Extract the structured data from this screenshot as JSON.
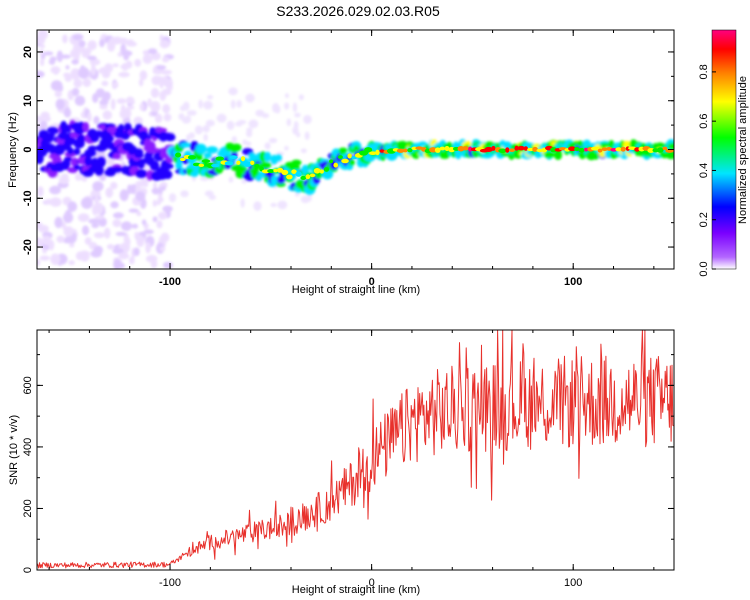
{
  "title": "S233.2026.029.02.03.R05",
  "chart_data": [
    {
      "type": "heatmap",
      "name": "spectrogram",
      "xlabel": "Height of straight line (km)",
      "ylabel": "Frequency (Hz)",
      "xlim": [
        -166,
        150
      ],
      "ylim": [
        -24.5,
        24.5
      ],
      "xticks": [
        -100,
        0,
        100
      ],
      "yticks": [
        -20,
        -10,
        0,
        10,
        20
      ],
      "colorbar": {
        "label": "Normalized spectral amplitude",
        "range": [
          0,
          0.97
        ],
        "ticks": [
          0.0,
          0.2,
          0.4,
          0.6,
          0.8
        ],
        "tick_labels": [
          "0.0",
          "0.2",
          "0.4",
          "0.6",
          "0.8"
        ],
        "colors": [
          "#ffffff",
          "#8800ff",
          "#0000ff",
          "#00ffff",
          "#00ff00",
          "#ffff00",
          "#ff8800",
          "#ff0000",
          "#ff0088"
        ]
      },
      "center_line": {
        "x": [
          -166,
          -140,
          -120,
          -100,
          -90,
          -80,
          -70,
          -60,
          -50,
          -40,
          -32,
          -25,
          -15,
          -5,
          0,
          20,
          50,
          100,
          150
        ],
        "freq": [
          0.5,
          0,
          0,
          -1,
          -2,
          -3,
          -2,
          -3,
          -4,
          -5,
          -6,
          -4,
          -2,
          -1,
          -0.5,
          0,
          0,
          0,
          0
        ]
      }
    },
    {
      "type": "line",
      "name": "snr",
      "xlabel": "Height of straight line (km)",
      "ylabel": "SNR (10 * v/v)",
      "xlim": [
        -166,
        150
      ],
      "ylim": [
        0,
        780
      ],
      "xticks": [
        -100,
        0,
        100
      ],
      "yticks": [
        0,
        200,
        400,
        600
      ],
      "color": "#e8312c",
      "trend": {
        "x": [
          -166,
          -100,
          -90,
          -80,
          -60,
          -40,
          -20,
          -10,
          0,
          10,
          20,
          30,
          50,
          80,
          100,
          120,
          150
        ],
        "y": [
          15,
          18,
          60,
          90,
          120,
          150,
          220,
          280,
          360,
          420,
          480,
          510,
          530,
          540,
          545,
          548,
          550
        ]
      }
    }
  ]
}
